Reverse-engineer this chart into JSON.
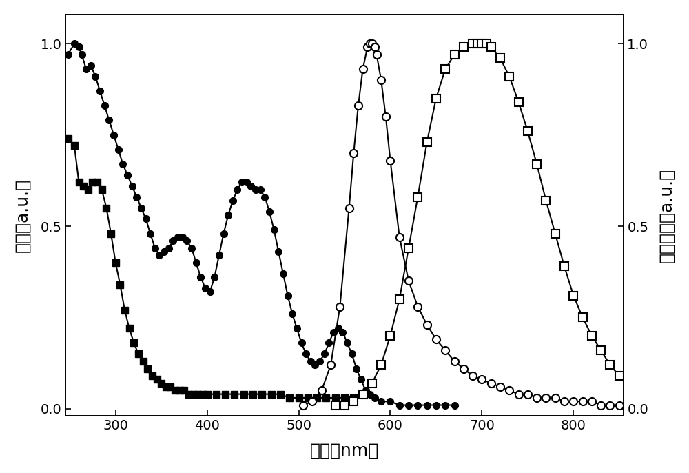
{
  "xlabel": "波长（nm）",
  "ylabel_left": "吸收（a.u.）",
  "ylabel_right": "光致发光（a.u.）",
  "xlim": [
    245,
    855
  ],
  "ylim_left": [
    -0.02,
    1.08
  ],
  "ylim_right": [
    -0.02,
    1.08
  ],
  "xticks": [
    300,
    400,
    500,
    600,
    700,
    800
  ],
  "yticks_left": [
    0.0,
    0.5,
    1.0
  ],
  "yticks_right": [
    0.0,
    0.5,
    1.0
  ],
  "filled_circle": {
    "x": [
      248,
      255,
      260,
      263,
      268,
      273,
      278,
      283,
      288,
      293,
      298,
      303,
      308,
      313,
      318,
      323,
      328,
      333,
      338,
      343,
      348,
      353,
      358,
      363,
      368,
      373,
      378,
      383,
      388,
      393,
      398,
      403,
      408,
      413,
      418,
      423,
      428,
      433,
      438,
      443,
      448,
      453,
      458,
      463,
      468,
      473,
      478,
      483,
      488,
      493,
      498,
      503,
      508,
      513,
      518,
      523,
      528,
      533,
      538,
      543,
      548,
      553,
      558,
      563,
      568,
      573,
      578,
      583,
      590,
      600,
      610,
      620,
      630,
      640,
      650,
      660,
      670
    ],
    "y": [
      0.97,
      1.0,
      0.99,
      0.97,
      0.93,
      0.94,
      0.91,
      0.87,
      0.83,
      0.79,
      0.75,
      0.71,
      0.67,
      0.64,
      0.61,
      0.58,
      0.55,
      0.52,
      0.48,
      0.44,
      0.42,
      0.43,
      0.44,
      0.46,
      0.47,
      0.47,
      0.46,
      0.44,
      0.4,
      0.36,
      0.33,
      0.32,
      0.36,
      0.42,
      0.48,
      0.53,
      0.57,
      0.6,
      0.62,
      0.62,
      0.61,
      0.6,
      0.6,
      0.58,
      0.54,
      0.49,
      0.43,
      0.37,
      0.31,
      0.26,
      0.22,
      0.18,
      0.15,
      0.13,
      0.12,
      0.13,
      0.15,
      0.18,
      0.21,
      0.22,
      0.21,
      0.18,
      0.15,
      0.11,
      0.08,
      0.05,
      0.04,
      0.03,
      0.02,
      0.02,
      0.01,
      0.01,
      0.01,
      0.01,
      0.01,
      0.01,
      0.01
    ]
  },
  "filled_square": {
    "x": [
      248,
      255,
      260,
      265,
      270,
      275,
      280,
      285,
      290,
      295,
      300,
      305,
      310,
      315,
      320,
      325,
      330,
      335,
      340,
      345,
      350,
      355,
      360,
      365,
      370,
      375,
      380,
      385,
      390,
      395,
      400,
      410,
      420,
      430,
      440,
      450,
      460,
      470,
      480,
      490,
      500,
      510,
      520,
      530,
      540,
      550,
      560
    ],
    "y": [
      0.74,
      0.72,
      0.62,
      0.61,
      0.6,
      0.62,
      0.62,
      0.6,
      0.55,
      0.48,
      0.4,
      0.34,
      0.27,
      0.22,
      0.18,
      0.15,
      0.13,
      0.11,
      0.09,
      0.08,
      0.07,
      0.06,
      0.06,
      0.05,
      0.05,
      0.05,
      0.04,
      0.04,
      0.04,
      0.04,
      0.04,
      0.04,
      0.04,
      0.04,
      0.04,
      0.04,
      0.04,
      0.04,
      0.04,
      0.03,
      0.03,
      0.03,
      0.03,
      0.03,
      0.03,
      0.03,
      0.03
    ]
  },
  "open_circle": {
    "x": [
      505,
      515,
      525,
      535,
      545,
      555,
      560,
      565,
      570,
      575,
      578,
      580,
      583,
      585,
      590,
      595,
      600,
      610,
      620,
      630,
      640,
      650,
      660,
      670,
      680,
      690,
      700,
      710,
      720,
      730,
      740,
      750,
      760,
      770,
      780,
      790,
      800,
      810,
      820,
      830,
      840,
      850
    ],
    "y": [
      0.01,
      0.02,
      0.05,
      0.12,
      0.28,
      0.55,
      0.7,
      0.83,
      0.93,
      0.99,
      1.0,
      1.0,
      0.99,
      0.97,
      0.9,
      0.8,
      0.68,
      0.47,
      0.35,
      0.28,
      0.23,
      0.19,
      0.16,
      0.13,
      0.11,
      0.09,
      0.08,
      0.07,
      0.06,
      0.05,
      0.04,
      0.04,
      0.03,
      0.03,
      0.03,
      0.02,
      0.02,
      0.02,
      0.02,
      0.01,
      0.01,
      0.01
    ]
  },
  "open_square": {
    "x": [
      540,
      550,
      560,
      570,
      580,
      590,
      600,
      610,
      620,
      630,
      640,
      650,
      660,
      670,
      680,
      690,
      695,
      700,
      705,
      710,
      720,
      730,
      740,
      750,
      760,
      770,
      780,
      790,
      800,
      810,
      820,
      830,
      840,
      850
    ],
    "y": [
      0.01,
      0.01,
      0.02,
      0.04,
      0.07,
      0.12,
      0.2,
      0.3,
      0.44,
      0.58,
      0.73,
      0.85,
      0.93,
      0.97,
      0.99,
      1.0,
      1.0,
      1.0,
      1.0,
      0.99,
      0.96,
      0.91,
      0.84,
      0.76,
      0.67,
      0.57,
      0.48,
      0.39,
      0.31,
      0.25,
      0.2,
      0.16,
      0.12,
      0.09
    ]
  }
}
